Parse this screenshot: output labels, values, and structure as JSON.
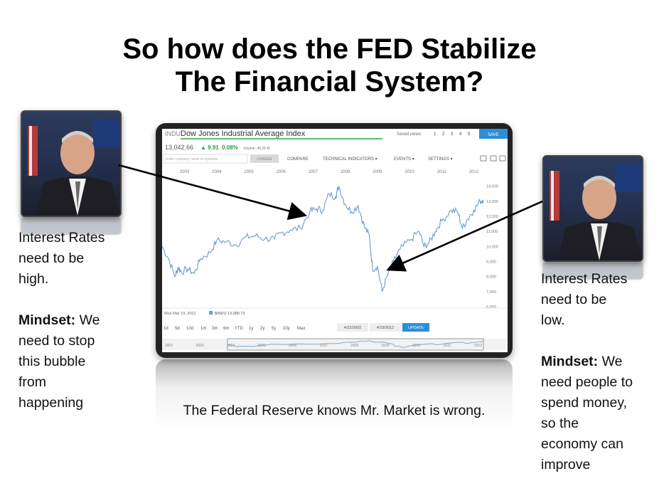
{
  "slide": {
    "title_line1": "So how does the FED Stabilize",
    "title_line2": "The Financial System?",
    "caption": "The Federal Reserve knows Mr. Market is wrong."
  },
  "left_panel": {
    "line1": "Interest Rates",
    "line2": "need to be",
    "line3": "high.",
    "mindset_label": "Mindset:",
    "m1": "We",
    "m2": "need to stop",
    "m3": "this bubble",
    "m4": "from",
    "m5": "happening"
  },
  "right_panel": {
    "line1": "Interest Rates",
    "line2": "need to be",
    "line3": "low.",
    "mindset_label": "Mindset:",
    "m1": "We",
    "m2": "need people to",
    "m3": "spend money,",
    "m4": "so the",
    "m5": "economy can",
    "m6": "improve"
  },
  "screen": {
    "ticker": "INDU",
    "index_name": "Dow Jones Industrial Average Index",
    "saved_views_label": "Saved views:",
    "saved_views": [
      "1",
      "2",
      "3",
      "4",
      "5"
    ],
    "save_button": "SAVE",
    "price": "13,042.66",
    "change": "▲ 9.91",
    "change_pct": "0.08%",
    "volume": "Volume: 46.25 M",
    "search_placeholder": "Enter company name or symbols",
    "change_button": "CHANGE",
    "menu": [
      "COMPARE",
      "TECHNICAL INDICATORS ▾",
      "EVENTS ▾",
      "SETTINGS ▾"
    ],
    "footer_date": "Mon Mar 19, 2012",
    "footer_series": "$INDU 13,080.73",
    "ranges": [
      "1d",
      "5d",
      "10d",
      "1m",
      "3m",
      "6m",
      "YTD",
      "1y",
      "2y",
      "5y",
      "10y",
      "Max"
    ],
    "date_from": "4/22/2002",
    "date_to": "4/19/2012",
    "update_button": "UPDATE",
    "nav_years": [
      "2002",
      "2003",
      "2004",
      "2005",
      "2006",
      "2007",
      "2008",
      "2009",
      "2010",
      "2011",
      "2012"
    ],
    "series_color": "#6a9bd1",
    "accent_color": "#2a8fd8"
  },
  "chart_data": {
    "type": "line",
    "title": "Dow Jones Industrial Average Index",
    "x_ticks": [
      "2003",
      "2004",
      "2005",
      "2006",
      "2007",
      "2008",
      "2009",
      "2010",
      "2011",
      "2012"
    ],
    "y_ticks": [
      6000,
      7000,
      8000,
      9000,
      10000,
      11000,
      12000,
      13000,
      14000
    ],
    "ylim": [
      6000,
      14500
    ],
    "xlim": [
      2002.3,
      2012.3
    ],
    "series": [
      {
        "x": [
          2002.3,
          2002.5,
          2002.7,
          2002.8,
          2002.9,
          2003.1,
          2003.3,
          2003.5,
          2003.8,
          2004.0,
          2004.3,
          2004.6,
          2004.9,
          2005.2,
          2005.5,
          2005.8,
          2006.0,
          2006.3,
          2006.6,
          2006.9,
          2007.1,
          2007.3,
          2007.5,
          2007.7,
          2007.8,
          2008.0,
          2008.2,
          2008.4,
          2008.6,
          2008.75,
          2008.85,
          2009.0,
          2009.15,
          2009.3,
          2009.5,
          2009.7,
          2010.0,
          2010.3,
          2010.45,
          2010.6,
          2010.8,
          2011.0,
          2011.3,
          2011.5,
          2011.65,
          2011.8,
          2012.0,
          2012.2,
          2012.3
        ],
        "values": [
          10000,
          9200,
          8000,
          8600,
          8300,
          8500,
          8200,
          9200,
          9600,
          10400,
          10300,
          10100,
          10600,
          10700,
          10500,
          10500,
          10900,
          11100,
          11200,
          12300,
          12500,
          12400,
          13500,
          13300,
          14000,
          12800,
          12300,
          12700,
          11300,
          10700,
          8500,
          8700,
          7000,
          8000,
          9000,
          9800,
          10400,
          11000,
          10000,
          10200,
          11000,
          11700,
          12400,
          12300,
          11200,
          11800,
          12400,
          13000,
          13100
        ]
      }
    ],
    "grid": false
  }
}
